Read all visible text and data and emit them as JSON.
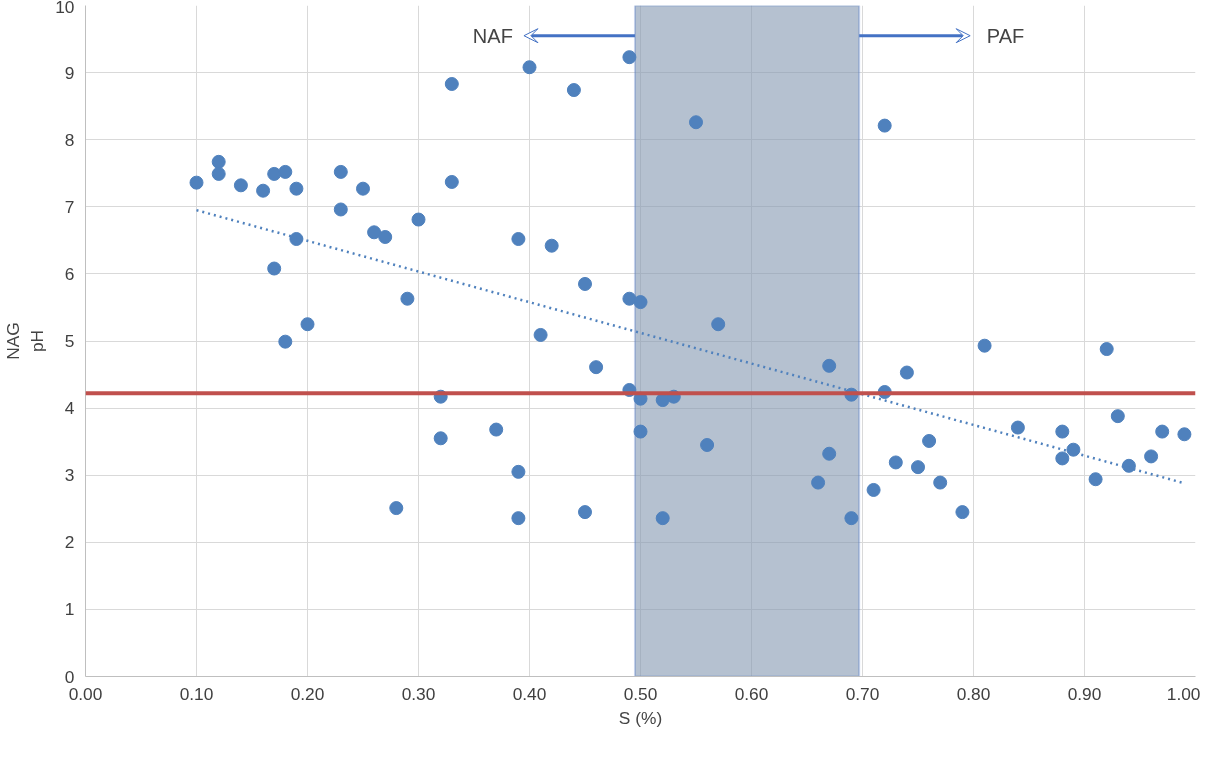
{
  "chart_data": {
    "type": "scatter",
    "xlabel": "S (%)",
    "ylabel": "NAG\npH",
    "xlim": [
      0,
      1
    ],
    "ylim": [
      0,
      10
    ],
    "xticks": [
      {
        "value": 0,
        "label": "0.00"
      },
      {
        "value": 0.1,
        "label": "0.10"
      },
      {
        "value": 0.2,
        "label": "0.20"
      },
      {
        "value": 0.3,
        "label": "0.30"
      },
      {
        "value": 0.4,
        "label": "0.40"
      },
      {
        "value": 0.5,
        "label": "0.50"
      },
      {
        "value": 0.6,
        "label": "0.60"
      },
      {
        "value": 0.7,
        "label": "0.70"
      },
      {
        "value": 0.8,
        "label": "0.80"
      },
      {
        "value": 0.9,
        "label": "0.90"
      },
      {
        "value": 1,
        "label": "1.00"
      }
    ],
    "yticks": [
      0,
      1,
      2,
      3,
      4,
      5,
      6,
      7,
      8,
      9,
      10
    ],
    "grid": true,
    "marker": "circle",
    "series": [
      {
        "color": "#4f81bd",
        "x": [
          0.1,
          0.12,
          0.12,
          0.14,
          0.16,
          0.17,
          0.18,
          0.19,
          0.17,
          0.19,
          0.18,
          0.2,
          0.23,
          0.23,
          0.25,
          0.26,
          0.27,
          0.3,
          0.29,
          0.28,
          0.33,
          0.33,
          0.32,
          0.32,
          0.37,
          0.4,
          0.39,
          0.39,
          0.39,
          0.41,
          0.44,
          0.42,
          0.45,
          0.46,
          0.45,
          0.49,
          0.49,
          0.5,
          0.49,
          0.5,
          0.5,
          0.52,
          0.53,
          0.52,
          0.55,
          0.57,
          0.56,
          0.67,
          0.67,
          0.66,
          0.69,
          0.69,
          0.72,
          0.72,
          0.71,
          0.73,
          0.74,
          0.75,
          0.76,
          0.77,
          0.79,
          0.81,
          0.84,
          0.88,
          0.88,
          0.89,
          0.91,
          0.92,
          0.93,
          0.94,
          0.96,
          0.97,
          0.99
        ],
        "values": [
          7.36,
          7.67,
          7.49,
          7.32,
          7.24,
          7.49,
          7.52,
          7.27,
          6.08,
          6.52,
          4.99,
          5.25,
          7.52,
          6.96,
          7.27,
          6.62,
          6.55,
          6.81,
          5.63,
          2.51,
          8.83,
          7.37,
          4.17,
          3.55,
          3.68,
          9.08,
          6.52,
          3.05,
          2.36,
          5.09,
          8.74,
          6.42,
          5.85,
          4.61,
          2.45,
          9.23,
          5.63,
          5.58,
          4.27,
          4.14,
          3.65,
          4.12,
          4.17,
          2.36,
          8.26,
          5.25,
          3.45,
          4.63,
          3.32,
          2.89,
          4.2,
          2.36,
          8.21,
          4.24,
          2.78,
          3.19,
          4.53,
          3.12,
          3.51,
          2.89,
          2.45,
          4.93,
          3.71,
          3.65,
          3.25,
          3.38,
          2.94,
          4.88,
          3.88,
          3.14,
          3.28,
          3.65,
          3.61
        ]
      },
      {
        "type": "line",
        "color": "#4f81bd",
        "line_style": "dotted",
        "marker": "none",
        "x": [
          0.1,
          0.99
        ],
        "values": [
          6.95,
          2.88
        ]
      }
    ],
    "ref_lines": [
      {
        "axis": "y",
        "value": 4.22,
        "color": "#c0504d"
      }
    ],
    "bands": [
      {
        "axis": "x",
        "from": 0.495,
        "to": 0.697,
        "color": "#8497b0"
      }
    ],
    "annotations": [
      "NAF",
      "PAF"
    ]
  }
}
